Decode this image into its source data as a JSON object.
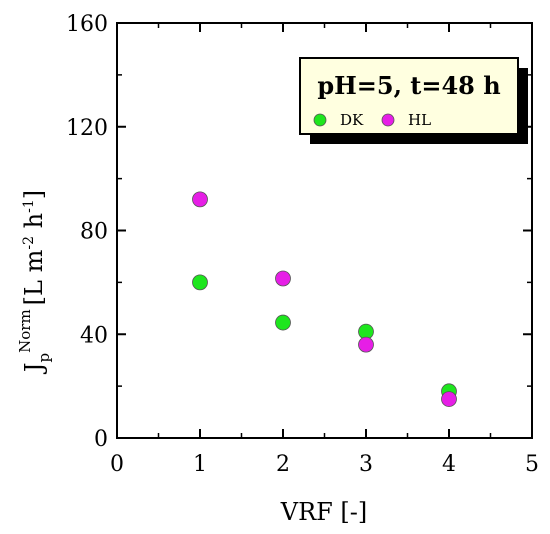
{
  "chart_data": {
    "type": "scatter",
    "title": "",
    "xlabel": "VRF [-]",
    "ylabel": {
      "main": "J",
      "subscript": "p",
      "superscript": "Norm",
      "unit_prefix": "[L m",
      "unit_exp1": "-2",
      "unit_mid": " h",
      "unit_exp2": "-1",
      "unit_suffix": "]"
    },
    "xlim": [
      0,
      5
    ],
    "ylim": [
      0,
      160
    ],
    "x_ticks": [
      "0",
      "1",
      "2",
      "3",
      "4",
      "5"
    ],
    "y_ticks": [
      "0",
      "40",
      "80",
      "120",
      "160"
    ],
    "grid": false,
    "legend": {
      "title": "pH=5, t=48 h",
      "position": "top-right"
    },
    "series": [
      {
        "name": "DK",
        "color": "#1ee61e",
        "points": [
          {
            "x": 1,
            "y": 60
          },
          {
            "x": 2,
            "y": 44.5
          },
          {
            "x": 3,
            "y": 41
          },
          {
            "x": 4,
            "y": 18
          }
        ]
      },
      {
        "name": "HL",
        "color": "#e61ee6",
        "points": [
          {
            "x": 1,
            "y": 92
          },
          {
            "x": 2,
            "y": 61.5
          },
          {
            "x": 3,
            "y": 36
          },
          {
            "x": 4,
            "y": 15
          }
        ]
      }
    ]
  }
}
